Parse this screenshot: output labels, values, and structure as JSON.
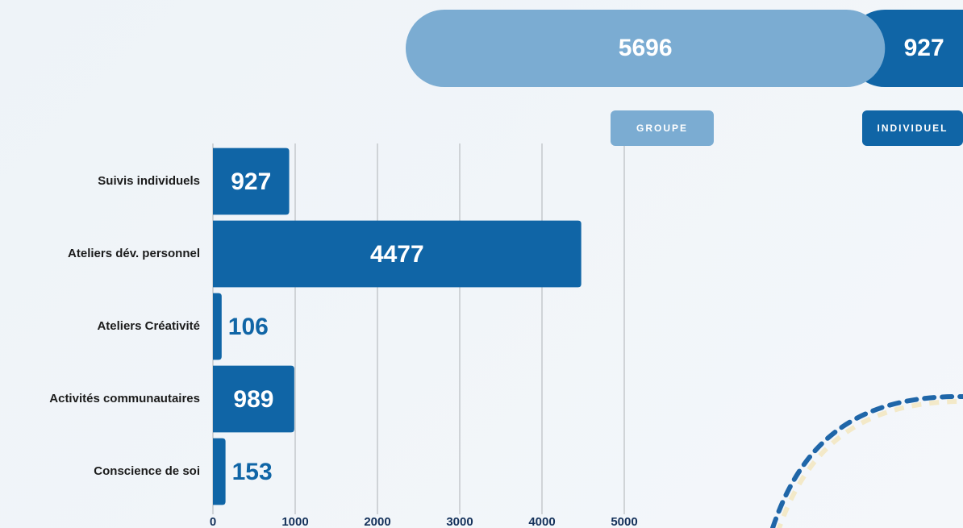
{
  "chart_data": [
    {
      "type": "hbar",
      "categories": [
        "Suivis individuels",
        "Ateliers dév. personnel",
        "Ateliers Créativité",
        "Activités communautaires",
        "Conscience de soi"
      ],
      "values": [
        927,
        4477,
        106,
        989,
        153
      ],
      "color": "#1065a6",
      "xlim": [
        0,
        5000
      ],
      "xticks": [
        0,
        1000,
        2000,
        3000,
        4000,
        5000
      ],
      "grid": true
    },
    {
      "type": "stacked-pill",
      "series": [
        {
          "name": "GROUPE",
          "color": "#7bacd2",
          "values": [
            5696
          ]
        },
        {
          "name": "INDIVIDUEL",
          "color": "#1065a6",
          "values": [
            927
          ]
        }
      ]
    }
  ]
}
